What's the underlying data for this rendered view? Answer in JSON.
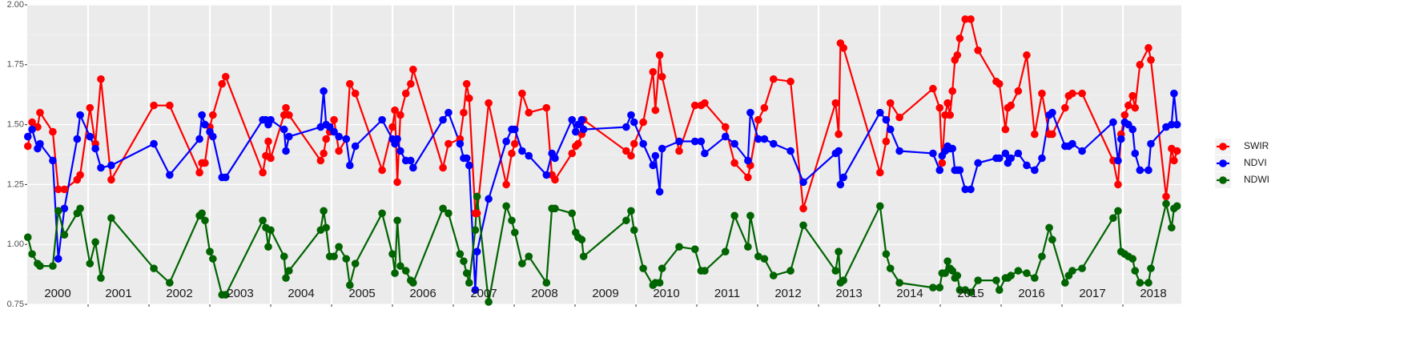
{
  "chart_data": {
    "type": "line",
    "x": [
      2000.01,
      2000.08,
      2000.17,
      2000.21,
      2000.42,
      2000.51,
      2000.61,
      2000.82,
      2000.87,
      2001.03,
      2001.12,
      2001.21,
      2001.38,
      2002.08,
      2002.34,
      2002.83,
      2002.87,
      2002.92,
      2003.0,
      2003.05,
      2003.2,
      2003.26,
      2003.87,
      2003.92,
      2003.96,
      2004.0,
      2004.22,
      2004.25,
      2004.3,
      2004.82,
      2004.87,
      2004.91,
      2004.97,
      2005.04,
      2005.12,
      2005.24,
      2005.3,
      2005.39,
      2005.83,
      2006.0,
      2006.04,
      2006.08,
      2006.13,
      2006.22,
      2006.3,
      2006.34,
      2006.83,
      2006.92,
      2007.11,
      2007.17,
      2007.22,
      2007.26,
      2007.36,
      2007.39,
      2007.58,
      2007.87,
      2007.96,
      2008.01,
      2008.13,
      2008.24,
      2008.53,
      2008.62,
      2008.67,
      2008.95,
      2009.01,
      2009.05,
      2009.11,
      2009.14,
      2009.84,
      2009.92,
      2009.97,
      2010.12,
      2010.28,
      2010.32,
      2010.39,
      2010.43,
      2010.71,
      2010.97,
      2011.07,
      2011.13,
      2011.47,
      2011.62,
      2011.84,
      2011.88,
      2012.01,
      2012.11,
      2012.26,
      2012.54,
      2012.75,
      2013.28,
      2013.33,
      2013.36,
      2013.41,
      2014.01,
      2014.11,
      2014.18,
      2014.33,
      2014.88,
      2014.99,
      2015.03,
      2015.08,
      2015.12,
      2015.16,
      2015.2,
      2015.24,
      2015.28,
      2015.32,
      2015.41,
      2015.5,
      2015.62,
      2015.92,
      2015.97,
      2016.07,
      2016.11,
      2016.16,
      2016.28,
      2016.42,
      2016.55,
      2016.67,
      2016.79,
      2016.84,
      2017.05,
      2017.11,
      2017.17,
      2017.33,
      2017.84,
      2017.92,
      2017.97,
      2018.03,
      2018.09,
      2018.16,
      2018.2,
      2018.28,
      2018.42,
      2018.46,
      2018.71,
      2018.8,
      2018.84,
      2018.89
    ],
    "series": [
      {
        "name": "SWIR",
        "color": "#ff0000",
        "values": [
          1.41,
          1.51,
          1.49,
          1.55,
          1.47,
          1.23,
          1.23,
          1.27,
          1.29,
          1.57,
          1.42,
          1.69,
          1.27,
          1.58,
          1.58,
          1.3,
          1.34,
          1.34,
          1.49,
          1.54,
          1.67,
          1.7,
          1.3,
          1.37,
          1.43,
          1.36,
          1.54,
          1.57,
          1.54,
          1.35,
          1.38,
          1.44,
          1.47,
          1.52,
          1.39,
          1.44,
          1.67,
          1.63,
          1.31,
          1.49,
          1.56,
          1.26,
          1.54,
          1.63,
          1.67,
          1.73,
          1.32,
          1.42,
          1.44,
          1.55,
          1.67,
          1.61,
          1.13,
          1.13,
          1.59,
          1.25,
          1.38,
          1.42,
          1.63,
          1.55,
          1.57,
          1.29,
          1.27,
          1.38,
          1.41,
          1.42,
          1.46,
          1.52,
          1.39,
          1.37,
          1.42,
          1.51,
          1.72,
          1.56,
          1.79,
          1.7,
          1.39,
          1.58,
          1.58,
          1.59,
          1.49,
          1.34,
          1.28,
          1.33,
          1.52,
          1.57,
          1.69,
          1.68,
          1.15,
          1.59,
          1.46,
          1.84,
          1.82,
          1.3,
          1.43,
          1.59,
          1.53,
          1.65,
          1.57,
          1.34,
          1.54,
          1.59,
          1.54,
          1.64,
          1.77,
          1.79,
          1.86,
          1.94,
          1.94,
          1.81,
          1.68,
          1.67,
          1.48,
          1.57,
          1.58,
          1.64,
          1.79,
          1.46,
          1.63,
          1.46,
          1.46,
          1.57,
          1.62,
          1.63,
          1.63,
          1.35,
          1.25,
          1.46,
          1.54,
          1.58,
          1.62,
          1.57,
          1.75,
          1.82,
          1.77,
          1.2,
          1.4,
          1.35,
          1.39
        ]
      },
      {
        "name": "NDVI",
        "color": "#0000ff",
        "values": [
          1.45,
          1.48,
          1.4,
          1.42,
          1.35,
          0.94,
          1.15,
          1.44,
          1.54,
          1.45,
          1.4,
          1.32,
          1.33,
          1.42,
          1.29,
          1.44,
          1.54,
          1.5,
          1.47,
          1.45,
          1.28,
          1.28,
          1.52,
          1.52,
          1.5,
          1.52,
          1.48,
          1.39,
          1.45,
          1.49,
          1.64,
          1.5,
          1.49,
          1.47,
          1.45,
          1.44,
          1.33,
          1.41,
          1.52,
          1.44,
          1.42,
          1.44,
          1.39,
          1.35,
          1.35,
          1.32,
          1.52,
          1.55,
          1.42,
          1.36,
          1.36,
          1.33,
          0.81,
          0.97,
          1.19,
          1.43,
          1.48,
          1.48,
          1.39,
          1.37,
          1.29,
          1.38,
          1.36,
          1.52,
          1.47,
          1.5,
          1.52,
          1.48,
          1.49,
          1.54,
          1.51,
          1.42,
          1.33,
          1.37,
          1.22,
          1.4,
          1.43,
          1.43,
          1.43,
          1.38,
          1.45,
          1.42,
          1.35,
          1.55,
          1.44,
          1.44,
          1.42,
          1.39,
          1.26,
          1.38,
          1.39,
          1.25,
          1.28,
          1.55,
          1.52,
          1.48,
          1.39,
          1.38,
          1.31,
          1.37,
          1.39,
          1.41,
          1.4,
          1.4,
          1.31,
          1.31,
          1.31,
          1.23,
          1.23,
          1.34,
          1.36,
          1.36,
          1.38,
          1.34,
          1.36,
          1.38,
          1.33,
          1.31,
          1.36,
          1.54,
          1.55,
          1.41,
          1.41,
          1.42,
          1.39,
          1.51,
          1.35,
          1.44,
          1.51,
          1.5,
          1.48,
          1.38,
          1.31,
          1.31,
          1.42,
          1.49,
          1.5,
          1.63,
          1.5
        ]
      },
      {
        "name": "NDWI",
        "color": "#006400",
        "values": [
          1.03,
          0.96,
          0.92,
          0.91,
          0.91,
          1.14,
          1.04,
          1.13,
          1.15,
          0.92,
          1.01,
          0.86,
          1.11,
          0.9,
          0.84,
          1.12,
          1.13,
          1.1,
          0.97,
          0.94,
          0.79,
          0.79,
          1.1,
          1.07,
          0.99,
          1.06,
          0.95,
          0.86,
          0.89,
          1.06,
          1.14,
          1.07,
          0.95,
          0.95,
          0.99,
          0.94,
          0.83,
          0.92,
          1.13,
          0.96,
          0.88,
          1.1,
          0.91,
          0.89,
          0.85,
          0.84,
          1.15,
          1.13,
          0.96,
          0.93,
          0.88,
          0.84,
          1.06,
          1.2,
          0.76,
          1.16,
          1.1,
          1.05,
          0.92,
          0.95,
          0.84,
          1.15,
          1.15,
          1.13,
          1.05,
          1.03,
          1.02,
          0.95,
          1.1,
          1.14,
          1.06,
          0.9,
          0.83,
          0.84,
          0.84,
          0.9,
          0.99,
          0.98,
          0.89,
          0.89,
          0.97,
          1.12,
          0.99,
          1.12,
          0.95,
          0.94,
          0.87,
          0.89,
          1.08,
          0.89,
          0.97,
          0.84,
          0.85,
          1.16,
          0.96,
          0.9,
          0.84,
          0.82,
          0.82,
          0.88,
          0.88,
          0.93,
          0.9,
          0.89,
          0.86,
          0.87,
          0.81,
          0.81,
          0.8,
          0.85,
          0.85,
          0.81,
          0.86,
          0.86,
          0.87,
          0.89,
          0.88,
          0.86,
          0.95,
          1.07,
          1.02,
          0.84,
          0.87,
          0.89,
          0.9,
          1.11,
          1.14,
          0.97,
          0.96,
          0.95,
          0.94,
          0.89,
          0.84,
          0.84,
          0.9,
          1.17,
          1.07,
          1.15,
          1.16
        ]
      }
    ],
    "xlim": [
      2000,
      2018.96
    ],
    "xticks": [
      {
        "value": 2000.5,
        "label": "2000"
      },
      {
        "value": 2001.5,
        "label": "2001"
      },
      {
        "value": 2002.5,
        "label": "2002"
      },
      {
        "value": 2003.5,
        "label": "2003"
      },
      {
        "value": 2004.5,
        "label": "2004"
      },
      {
        "value": 2005.5,
        "label": "2005"
      },
      {
        "value": 2006.5,
        "label": "2006"
      },
      {
        "value": 2007.5,
        "label": "2007"
      },
      {
        "value": 2008.5,
        "label": "2008"
      },
      {
        "value": 2009.5,
        "label": "2009"
      },
      {
        "value": 2010.5,
        "label": "2010"
      },
      {
        "value": 2011.5,
        "label": "2011"
      },
      {
        "value": 2012.5,
        "label": "2012"
      },
      {
        "value": 2013.5,
        "label": "2013"
      },
      {
        "value": 2014.5,
        "label": "2014"
      },
      {
        "value": 2015.5,
        "label": "2015"
      },
      {
        "value": 2016.5,
        "label": "2016"
      },
      {
        "value": 2017.5,
        "label": "2017"
      },
      {
        "value": 2018.5,
        "label": "2018"
      }
    ],
    "year_lines": [
      2001,
      2002,
      2003,
      2004,
      2005,
      2006,
      2007,
      2008,
      2009,
      2010,
      2011,
      2012,
      2013,
      2014,
      2015,
      2016,
      2017,
      2018
    ],
    "ylim": [
      0.75,
      2.0
    ],
    "yticks": [
      {
        "value": 0.75,
        "label": "0.75"
      },
      {
        "value": 1.0,
        "label": "1.00"
      },
      {
        "value": 1.25,
        "label": "1.25"
      },
      {
        "value": 1.5,
        "label": "1.50"
      },
      {
        "value": 1.75,
        "label": "1.75"
      },
      {
        "value": 2.0,
        "label": "2.00"
      }
    ],
    "grid": true,
    "legend": "right"
  }
}
